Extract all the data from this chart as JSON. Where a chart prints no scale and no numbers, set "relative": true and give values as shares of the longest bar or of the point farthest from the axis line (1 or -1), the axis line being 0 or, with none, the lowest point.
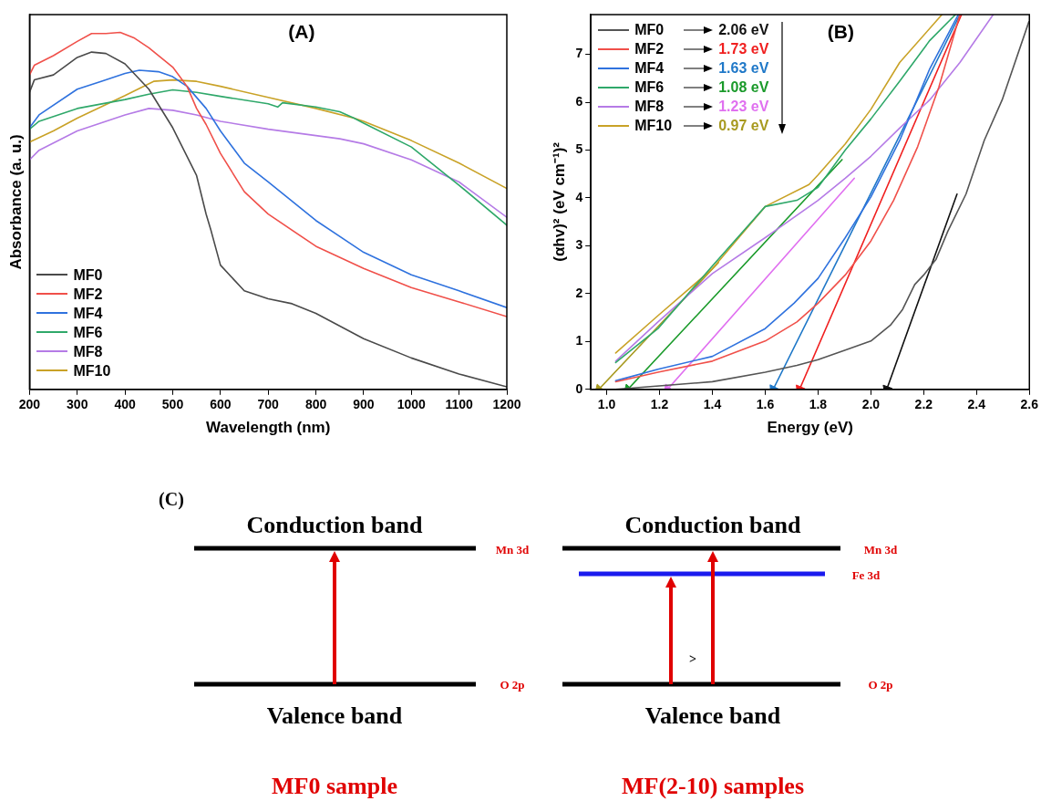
{
  "chart_data": [
    {
      "type": "line",
      "title": "(A)",
      "xlabel": "Wavelength (nm)",
      "ylabel": "Absorbance (a. u.)",
      "relative": true,
      "xlim": [
        200,
        1200
      ],
      "xticks": [
        200,
        300,
        400,
        500,
        600,
        700,
        800,
        900,
        1000,
        1100,
        1200
      ],
      "tick_labels": "x",
      "grid": false,
      "legend": "bottom left",
      "marker": "none",
      "line_style": "solid",
      "series": [
        {
          "name": "MF0",
          "color": "#4a4a4a",
          "x": [
            200,
            210,
            250,
            300,
            330,
            360,
            400,
            450,
            500,
            550,
            570,
            580,
            600,
            650,
            700,
            750,
            800,
            900,
            1000,
            1100,
            1200
          ],
          "values": [
            0.832,
            0.867,
            0.881,
            0.93,
            0.945,
            0.941,
            0.912,
            0.841,
            0.733,
            0.599,
            0.491,
            0.446,
            0.348,
            0.276,
            0.254,
            0.24,
            0.213,
            0.142,
            0.088,
            0.043,
            0.007
          ]
        },
        {
          "name": "MF2",
          "color": "#f0504a",
          "x": [
            200,
            210,
            250,
            300,
            330,
            360,
            390,
            420,
            450,
            500,
            530,
            550,
            570,
            600,
            650,
            700,
            800,
            900,
            1000,
            1100,
            1200
          ],
          "values": [
            0.881,
            0.908,
            0.935,
            0.975,
            0.997,
            0.997,
            1,
            0.984,
            0.957,
            0.903,
            0.849,
            0.787,
            0.742,
            0.661,
            0.554,
            0.491,
            0.401,
            0.339,
            0.285,
            0.245,
            0.204
          ]
        },
        {
          "name": "MF4",
          "color": "#2f72de",
          "x": [
            200,
            220,
            300,
            350,
            400,
            430,
            470,
            500,
            530,
            570,
            600,
            650,
            700,
            800,
            900,
            1000,
            1100,
            1200
          ],
          "values": [
            0.733,
            0.769,
            0.841,
            0.863,
            0.885,
            0.894,
            0.89,
            0.876,
            0.849,
            0.787,
            0.724,
            0.634,
            0.581,
            0.473,
            0.384,
            0.321,
            0.276,
            0.229
          ]
        },
        {
          "name": "MF6",
          "color": "#2fa86a",
          "x": [
            200,
            220,
            300,
            400,
            450,
            500,
            550,
            600,
            700,
            720,
            730,
            800,
            850,
            880,
            900,
            1000,
            1100,
            1200
          ],
          "values": [
            0.729,
            0.751,
            0.787,
            0.812,
            0.827,
            0.839,
            0.832,
            0.821,
            0.8,
            0.791,
            0.803,
            0.791,
            0.778,
            0.76,
            0.746,
            0.679,
            0.572,
            0.46
          ]
        },
        {
          "name": "MF8",
          "color": "#b57be6",
          "x": [
            200,
            220,
            300,
            400,
            450,
            500,
            550,
            600,
            700,
            800,
            850,
            900,
            1000,
            1100,
            1200
          ],
          "values": [
            0.643,
            0.67,
            0.724,
            0.769,
            0.787,
            0.782,
            0.769,
            0.751,
            0.729,
            0.711,
            0.702,
            0.688,
            0.643,
            0.581,
            0.482
          ]
        },
        {
          "name": "MF10",
          "color": "#c9a227",
          "x": [
            200,
            250,
            300,
            400,
            460,
            500,
            550,
            600,
            700,
            800,
            880,
            900,
            1000,
            1100,
            1200
          ],
          "values": [
            0.693,
            0.724,
            0.76,
            0.823,
            0.863,
            0.867,
            0.863,
            0.849,
            0.818,
            0.787,
            0.76,
            0.751,
            0.697,
            0.634,
            0.563
          ]
        }
      ]
    },
    {
      "type": "line",
      "title": "(B)",
      "xlabel": "Energy (eV)",
      "ylabel": "(αhv)² (eV cm⁻¹)²",
      "xlim": [
        0.94,
        2.6
      ],
      "ylim": [
        0,
        7.83
      ],
      "xticks": [
        {
          "value": 1,
          "label": "1.0"
        },
        {
          "value": 1.2,
          "label": "1.2"
        },
        {
          "value": 1.4,
          "label": "1.4"
        },
        {
          "value": 1.6,
          "label": "1.6"
        },
        {
          "value": 1.8,
          "label": "1.8"
        },
        {
          "value": 2,
          "label": "2.0"
        },
        {
          "value": 2.2,
          "label": "2.2"
        },
        {
          "value": 2.4,
          "label": "2.4"
        },
        {
          "value": 2.6,
          "label": "2.6"
        }
      ],
      "yticks": [
        0,
        1,
        2,
        3,
        4,
        5,
        6,
        7
      ],
      "grid": false,
      "legend": "top left",
      "marker": "none",
      "line_style": "solid",
      "annotations": [
        "2.06 eV",
        "1.73 eV",
        "1.63 eV",
        "1.08 eV",
        "1.23 eV",
        "0.97 eV"
      ],
      "series": [
        {
          "name": "MF0",
          "color": "#555555",
          "x": [
            1.034,
            1.4,
            1.6,
            1.72,
            1.8,
            1.903,
            2,
            2.074,
            2.12,
            2.166,
            2.2,
            2.246,
            2.291,
            2.36,
            2.429,
            2.497,
            2.598
          ],
          "values": [
            0,
            0.16,
            0.36,
            0.5,
            0.62,
            0.82,
            1.01,
            1.34,
            1.67,
            2.19,
            2.39,
            2.71,
            3.3,
            4.08,
            5.2,
            6.05,
            7.68
          ]
        },
        {
          "name": "MF2",
          "color": "#f0504a",
          "x": [
            1.034,
            1.194,
            1.4,
            1.6,
            1.72,
            1.8,
            1.903,
            2,
            2.086,
            2.177,
            2.257,
            2.337
          ],
          "values": [
            0.16,
            0.36,
            0.59,
            1.01,
            1.41,
            1.8,
            2.39,
            3.1,
            3.95,
            5.07,
            6.31,
            7.83
          ]
        },
        {
          "name": "MF4",
          "color": "#2f72de",
          "x": [
            1.034,
            1.194,
            1.4,
            1.6,
            1.709,
            1.8,
            1.903,
            2,
            2.109,
            2.223,
            2.331
          ],
          "values": [
            0.18,
            0.42,
            0.69,
            1.27,
            1.8,
            2.32,
            3.17,
            4.02,
            5.2,
            6.7,
            7.83
          ]
        },
        {
          "name": "MF6",
          "color": "#2fa86a",
          "x": [
            1.034,
            1.194,
            1.4,
            1.6,
            1.72,
            1.8,
            1.903,
            2,
            2.109,
            2.223,
            2.32
          ],
          "values": [
            0.56,
            1.27,
            2.58,
            3.82,
            3.95,
            4.22,
            5,
            5.65,
            6.44,
            7.29,
            7.83
          ]
        },
        {
          "name": "MF8",
          "color": "#b57be6",
          "x": [
            1.034,
            1.194,
            1.4,
            1.6,
            1.8,
            1.903,
            2,
            2.109,
            2.223,
            2.337,
            2.463
          ],
          "values": [
            0.59,
            1.41,
            2.42,
            3.17,
            3.95,
            4.41,
            4.87,
            5.46,
            6.05,
            6.83,
            7.83
          ]
        },
        {
          "name": "MF10",
          "color": "#c9a227",
          "x": [
            1.034,
            1.194,
            1.4,
            1.6,
            1.766,
            1.8,
            1.903,
            2,
            2.109,
            2.269
          ],
          "values": [
            0.76,
            1.54,
            2.52,
            3.82,
            4.28,
            4.48,
            5.13,
            5.85,
            6.83,
            7.83
          ]
        },
        {
          "color": "#111111",
          "marker": "triangle",
          "x": [
            2.06,
            2.326
          ],
          "values": [
            0,
            4.08
          ]
        },
        {
          "color": "#f02020",
          "marker": "triangle",
          "x": [
            1.73,
            2.343
          ],
          "values": [
            0,
            7.83
          ]
        },
        {
          "color": "#1f78c8",
          "marker": "triangle",
          "x": [
            1.63,
            2.337
          ],
          "values": [
            0,
            7.83
          ]
        },
        {
          "color": "#1a9a2a",
          "marker": "triangle",
          "x": [
            1.08,
            1.891
          ],
          "values": [
            0,
            4.8
          ]
        },
        {
          "color": "#e070f0",
          "marker": "triangle",
          "x": [
            1.23,
            1.937
          ],
          "values": [
            0,
            4.41
          ]
        },
        {
          "color": "#a89a20",
          "marker": "triangle",
          "x": [
            0.97,
            1.423
          ],
          "values": [
            0,
            2.65
          ]
        }
      ]
    },
    {
      "type": "other",
      "title": "(C)",
      "annotations": [
        "Conduction band",
        "Mn 3d",
        "O 2p",
        "Valence band",
        "MF0 sample",
        "Conduction band",
        "Mn 3d",
        "Fe 3d",
        ">",
        "O 2p",
        "Valence band",
        "MF(2-10) samples"
      ]
    }
  ]
}
